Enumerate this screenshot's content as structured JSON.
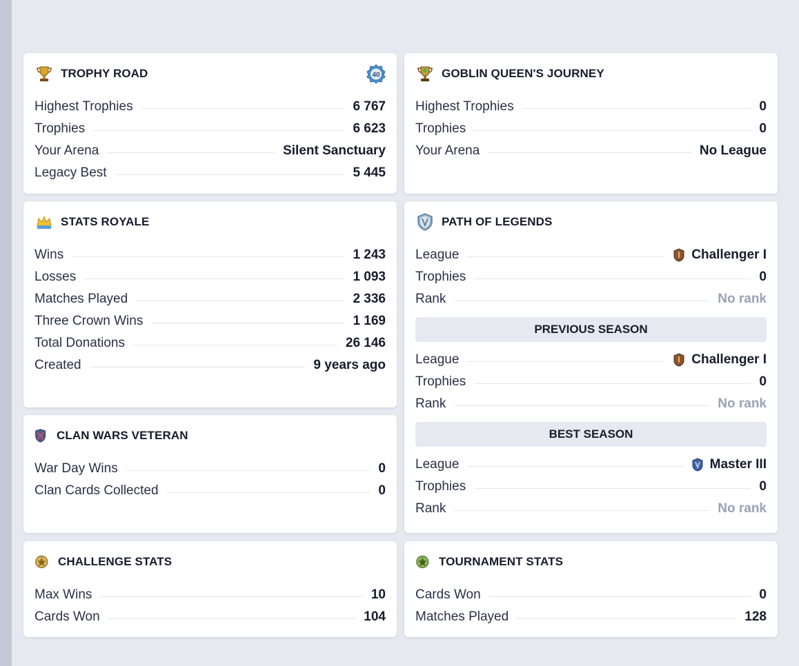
{
  "trophy_road": {
    "title": "TROPHY ROAD",
    "icon": "trophy-icon",
    "level_badge": "40",
    "rows": [
      {
        "label": "Highest Trophies",
        "value": "6 767"
      },
      {
        "label": "Trophies",
        "value": "6 623"
      },
      {
        "label": "Your Arena",
        "value": "Silent Sanctuary"
      },
      {
        "label": "Legacy Best",
        "value": "5 445"
      }
    ]
  },
  "goblin_queen": {
    "title": "GOBLIN QUEEN'S JOURNEY",
    "icon": "goblin-trophy-icon",
    "rows": [
      {
        "label": "Highest Trophies",
        "value": "0"
      },
      {
        "label": "Trophies",
        "value": "0"
      },
      {
        "label": "Your Arena",
        "value": "No League"
      }
    ]
  },
  "stats_royale": {
    "title": "STATS ROYALE",
    "icon": "crown-icon",
    "rows": [
      {
        "label": "Wins",
        "value": "1 243"
      },
      {
        "label": "Losses",
        "value": "1 093"
      },
      {
        "label": "Matches Played",
        "value": "2 336"
      },
      {
        "label": "Three Crown Wins",
        "value": "1 169"
      },
      {
        "label": "Total Donations",
        "value": "26 146"
      },
      {
        "label": "Created",
        "value": "9 years ago"
      }
    ]
  },
  "path_of_legends": {
    "title": "PATH OF LEGENDS",
    "icon": "legends-shield-icon",
    "current": [
      {
        "label": "League",
        "value": "Challenger I"
      },
      {
        "label": "Trophies",
        "value": "0"
      },
      {
        "label": "Rank",
        "value": "No rank"
      }
    ],
    "previous_title": "PREVIOUS SEASON",
    "previous": [
      {
        "label": "League",
        "value": "Challenger I"
      },
      {
        "label": "Trophies",
        "value": "0"
      },
      {
        "label": "Rank",
        "value": "No rank"
      }
    ],
    "best_title": "BEST SEASON",
    "best": [
      {
        "label": "League",
        "value": "Master III"
      },
      {
        "label": "Trophies",
        "value": "0"
      },
      {
        "label": "Rank",
        "value": "No rank"
      }
    ]
  },
  "clan_wars": {
    "title": "CLAN WARS VETERAN",
    "icon": "clan-wars-shield-icon",
    "rows": [
      {
        "label": "War Day Wins",
        "value": "0"
      },
      {
        "label": "Clan Cards Collected",
        "value": "0"
      }
    ]
  },
  "challenge_stats": {
    "title": "CHALLENGE STATS",
    "icon": "challenge-badge-icon",
    "rows": [
      {
        "label": "Max Wins",
        "value": "10"
      },
      {
        "label": "Cards Won",
        "value": "104"
      }
    ]
  },
  "tournament_stats": {
    "title": "TOURNAMENT STATS",
    "icon": "tournament-badge-icon",
    "rows": [
      {
        "label": "Cards Won",
        "value": "0"
      },
      {
        "label": "Matches Played",
        "value": "128"
      }
    ]
  },
  "colors": {
    "background": "#e6e9ef",
    "card": "#ffffff",
    "text": "#151c2c",
    "muted": "#9aa3b5"
  }
}
